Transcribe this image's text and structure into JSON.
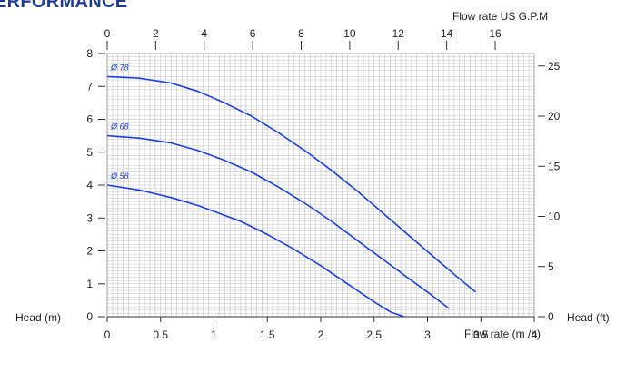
{
  "page": {
    "heading": "ERFORMANCE"
  },
  "chart_data": {
    "type": "line",
    "title": "",
    "axes": {
      "x_bottom": {
        "label": "Flow rate  (m /h)",
        "range": [
          0,
          4
        ],
        "ticks": [
          0,
          0.5,
          1,
          1.5,
          2,
          2.5,
          3,
          3.5,
          4
        ],
        "tick_labels": [
          "0",
          "0.5",
          "1",
          "1.5",
          "2",
          "2.5",
          "3",
          "3.5",
          "4"
        ]
      },
      "x_top": {
        "label": "Flow rate US  G.P.M",
        "ticks": [
          0,
          2,
          4,
          6,
          8,
          10,
          12,
          14,
          16
        ],
        "tick_labels": [
          "0",
          "2",
          "4",
          "6",
          "8",
          "10",
          "12",
          "14",
          "16"
        ]
      },
      "y_left": {
        "label": "Head (m)",
        "range": [
          0,
          8
        ],
        "ticks": [
          0,
          1,
          2,
          3,
          4,
          5,
          6,
          7,
          8
        ],
        "tick_labels": [
          "0",
          "1",
          "2",
          "3",
          "4",
          "5",
          "6",
          "7",
          "8"
        ]
      },
      "y_right": {
        "label": "Head (ft)",
        "ticks": [
          0,
          5,
          10,
          15,
          20,
          25
        ],
        "tick_labels": [
          "0",
          "5",
          "10",
          "15",
          "20",
          "25"
        ]
      }
    },
    "grid": true,
    "series": [
      {
        "name": "Ø 78",
        "x": [
          0,
          0.3,
          0.6,
          0.85,
          1.1,
          1.35,
          1.6,
          1.85,
          2.1,
          2.35,
          2.6,
          2.85,
          3.1,
          3.3,
          3.45
        ],
        "y": [
          7.3,
          7.25,
          7.1,
          6.85,
          6.5,
          6.1,
          5.6,
          5.05,
          4.45,
          3.8,
          3.1,
          2.4,
          1.7,
          1.15,
          0.75
        ]
      },
      {
        "name": "Ø 68",
        "x": [
          0,
          0.3,
          0.6,
          0.85,
          1.1,
          1.35,
          1.6,
          1.85,
          2.1,
          2.35,
          2.6,
          2.85,
          3.0,
          3.2
        ],
        "y": [
          5.5,
          5.43,
          5.28,
          5.05,
          4.75,
          4.4,
          3.95,
          3.45,
          2.9,
          2.3,
          1.7,
          1.1,
          0.75,
          0.25
        ]
      },
      {
        "name": "Ø 58",
        "x": [
          0,
          0.3,
          0.6,
          0.85,
          1.0,
          1.25,
          1.5,
          1.75,
          2.0,
          2.25,
          2.5,
          2.65,
          2.78
        ],
        "y": [
          4.0,
          3.85,
          3.62,
          3.38,
          3.2,
          2.9,
          2.5,
          2.05,
          1.55,
          1.0,
          0.45,
          0.15,
          0.0
        ]
      }
    ],
    "series_color": "#1f3fe0"
  }
}
